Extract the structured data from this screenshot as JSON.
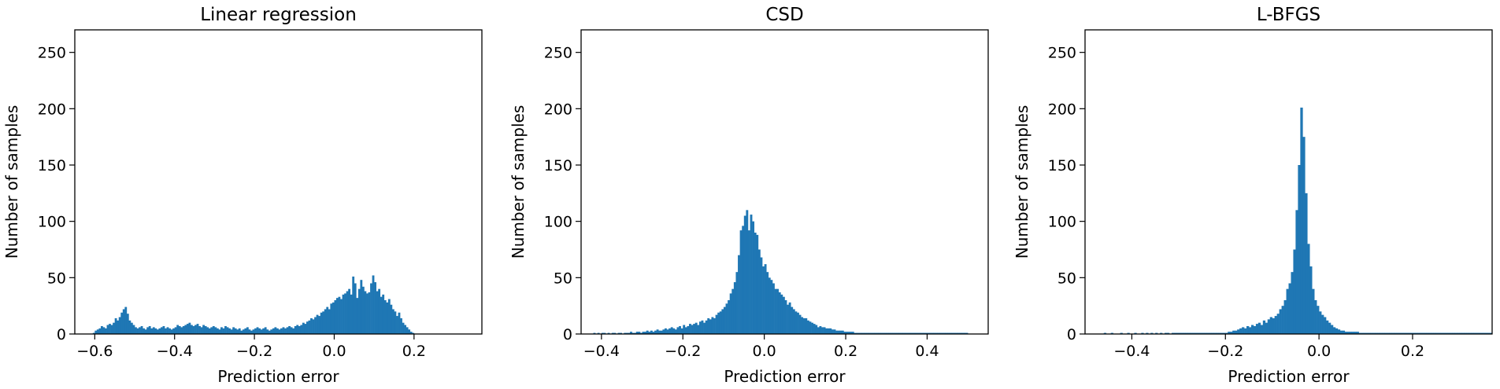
{
  "chart_data": [
    {
      "type": "bar",
      "title": "Linear regression",
      "xlabel": "Prediction error",
      "ylabel": "Number of samples",
      "xlim": [
        -0.65,
        0.37
      ],
      "ylim": [
        0,
        270
      ],
      "xticks": [
        -0.6,
        -0.4,
        -0.2,
        0.0,
        0.2
      ],
      "xtick_labels": [
        "−0.6",
        "−0.4",
        "−0.2",
        "0.0",
        "0.2"
      ],
      "yticks": [
        0,
        50,
        100,
        150,
        200,
        250
      ],
      "ytick_labels": [
        "0",
        "50",
        "100",
        "150",
        "200",
        "250"
      ],
      "bar_color": "#1f77b4",
      "bin_start": -0.605,
      "bin_width": 0.005,
      "counts": [
        1,
        3,
        4,
        5,
        7,
        6,
        5,
        8,
        9,
        8,
        10,
        14,
        12,
        15,
        19,
        22,
        24,
        18,
        12,
        10,
        8,
        6,
        5,
        6,
        7,
        5,
        4,
        6,
        7,
        5,
        6,
        5,
        4,
        5,
        6,
        7,
        5,
        6,
        5,
        4,
        5,
        6,
        8,
        7,
        6,
        7,
        8,
        9,
        10,
        8,
        7,
        8,
        9,
        7,
        6,
        8,
        7,
        6,
        5,
        6,
        7,
        6,
        5,
        4,
        6,
        5,
        7,
        6,
        5,
        4,
        6,
        5,
        4,
        5,
        3,
        4,
        5,
        6,
        4,
        3,
        4,
        5,
        6,
        5,
        4,
        5,
        6,
        4,
        3,
        4,
        5,
        6,
        5,
        4,
        5,
        6,
        5,
        6,
        7,
        6,
        5,
        7,
        8,
        7,
        8,
        10,
        9,
        11,
        12,
        14,
        13,
        15,
        17,
        16,
        19,
        20,
        22,
        24,
        22,
        27,
        28,
        30,
        32,
        33,
        31,
        35,
        36,
        38,
        40,
        35,
        51,
        45,
        32,
        40,
        48,
        42,
        38,
        36,
        37,
        45,
        52,
        46,
        38,
        40,
        33,
        35,
        30,
        28,
        31,
        26,
        22,
        20,
        16,
        19,
        14,
        10,
        8,
        6,
        4,
        2,
        1
      ]
    },
    {
      "type": "bar",
      "title": "CSD",
      "xlabel": "Prediction error",
      "ylabel": "Number of samples",
      "xlim": [
        -0.45,
        0.55
      ],
      "ylim": [
        0,
        270
      ],
      "xticks": [
        -0.4,
        -0.2,
        0.0,
        0.2,
        0.4
      ],
      "xtick_labels": [
        "−0.4",
        "−0.2",
        "0.0",
        "0.2",
        "0.4"
      ],
      "yticks": [
        0,
        50,
        100,
        150,
        200,
        250
      ],
      "ytick_labels": [
        "0",
        "50",
        "100",
        "150",
        "200",
        "250"
      ],
      "bar_color": "#1f77b4",
      "bin_start": -0.42,
      "bin_width": 0.005,
      "counts": [
        1,
        0,
        1,
        0,
        1,
        1,
        0,
        1,
        0,
        1,
        1,
        0,
        1,
        1,
        0,
        1,
        1,
        1,
        2,
        1,
        1,
        2,
        2,
        1,
        2,
        2,
        3,
        2,
        3,
        2,
        3,
        4,
        3,
        3,
        4,
        5,
        4,
        5,
        6,
        5,
        4,
        6,
        7,
        5,
        8,
        6,
        7,
        9,
        8,
        9,
        10,
        8,
        11,
        12,
        10,
        12,
        14,
        13,
        15,
        14,
        17,
        19,
        20,
        22,
        24,
        27,
        30,
        36,
        40,
        46,
        55,
        70,
        92,
        96,
        105,
        110,
        92,
        106,
        100,
        90,
        88,
        75,
        68,
        60,
        62,
        55,
        50,
        48,
        45,
        40,
        40,
        37,
        35,
        33,
        30,
        26,
        28,
        24,
        22,
        20,
        19,
        17,
        15,
        14,
        14,
        12,
        11,
        10,
        9,
        8,
        6,
        7,
        6,
        6,
        5,
        5,
        5,
        4,
        4,
        3,
        3,
        3,
        3,
        2,
        2,
        2,
        2,
        2,
        1,
        1,
        1,
        1,
        1,
        1,
        1,
        1,
        1,
        1,
        1,
        1,
        1,
        1,
        1,
        1,
        1,
        1,
        1,
        1,
        1,
        1,
        1,
        1,
        1,
        1,
        1,
        1,
        1,
        1,
        1,
        1,
        1,
        1,
        1,
        1,
        1,
        1,
        1,
        1,
        1,
        1,
        1,
        1,
        1,
        1,
        1,
        1,
        1,
        1,
        1,
        1,
        1,
        1,
        1,
        1
      ]
    },
    {
      "type": "bar",
      "title": "L-BFGS",
      "xlabel": "Prediction error",
      "ylabel": "Number of samples",
      "xlim": [
        -0.5,
        0.37
      ],
      "ylim": [
        0,
        270
      ],
      "xticks": [
        -0.4,
        -0.2,
        0.0,
        0.2
      ],
      "xtick_labels": [
        "−0.4",
        "−0.2",
        "0.0",
        "0.2"
      ],
      "yticks": [
        0,
        50,
        100,
        150,
        200,
        250
      ],
      "ytick_labels": [
        "0",
        "50",
        "100",
        "150",
        "200",
        "250"
      ],
      "bar_color": "#1f77b4",
      "bin_start": -0.46,
      "bin_width": 0.005,
      "counts": [
        1,
        0,
        0,
        1,
        0,
        0,
        0,
        1,
        0,
        0,
        1,
        0,
        0,
        1,
        0,
        0,
        1,
        0,
        1,
        0,
        1,
        0,
        1,
        0,
        1,
        0,
        1,
        1,
        0,
        1,
        1,
        1,
        1,
        1,
        1,
        1,
        1,
        1,
        1,
        1,
        1,
        1,
        1,
        1,
        1,
        1,
        1,
        1,
        1,
        1,
        1,
        1,
        1,
        2,
        2,
        3,
        3,
        4,
        5,
        6,
        5,
        7,
        6,
        8,
        7,
        9,
        10,
        8,
        12,
        10,
        13,
        15,
        14,
        16,
        18,
        22,
        25,
        30,
        40,
        45,
        55,
        75,
        110,
        150,
        201,
        175,
        125,
        80,
        60,
        40,
        30,
        25,
        20,
        17,
        15,
        12,
        10,
        8,
        6,
        5,
        4,
        3,
        3,
        2,
        2,
        2,
        2,
        2,
        2,
        1,
        1,
        1,
        1,
        1,
        1,
        1,
        1,
        1,
        1,
        1,
        1,
        1,
        1,
        1,
        1,
        1,
        1,
        1,
        1,
        1,
        1,
        1,
        1,
        1,
        1,
        1,
        1,
        1,
        1,
        1,
        1,
        1,
        1,
        1,
        1,
        1,
        1,
        1,
        1,
        1,
        1,
        1,
        1,
        1,
        1,
        1,
        1,
        1,
        1,
        1,
        1,
        1,
        1,
        1,
        1,
        1
      ]
    }
  ]
}
